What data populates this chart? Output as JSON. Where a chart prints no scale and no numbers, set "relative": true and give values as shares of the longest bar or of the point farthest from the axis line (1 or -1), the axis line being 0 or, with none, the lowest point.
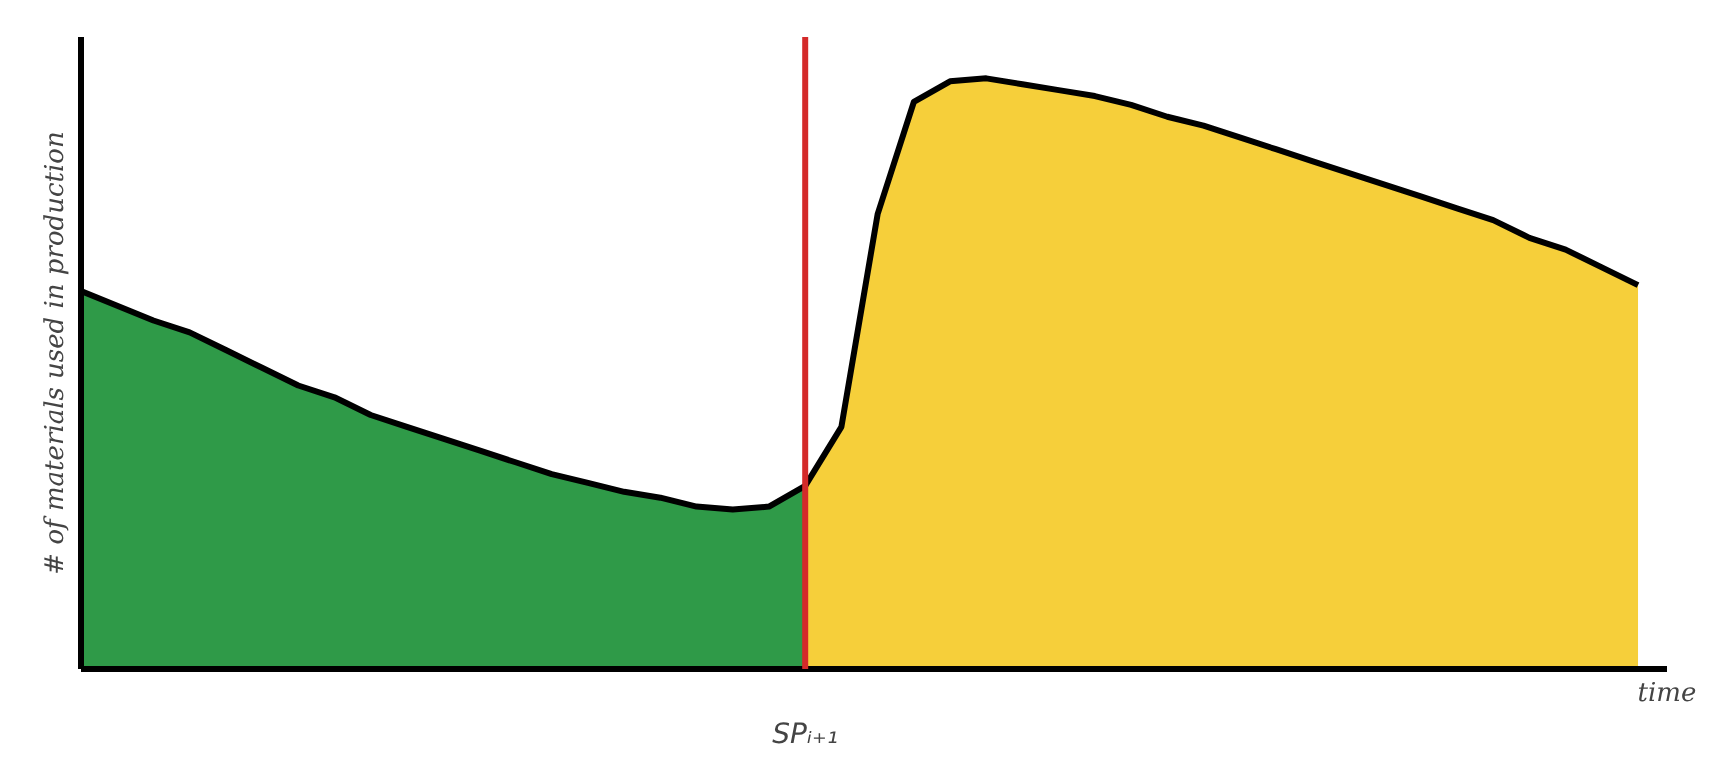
{
  "chart_data": {
    "type": "area",
    "relative": true,
    "xlabel": "time",
    "ylabel": "# of materials used in production",
    "categories": [
      null,
      null,
      null,
      null,
      null,
      null,
      null,
      null,
      null,
      null,
      null,
      null,
      null,
      null,
      null,
      null,
      null,
      null,
      null,
      null,
      null,
      null,
      null,
      null,
      null,
      null,
      null,
      null,
      null,
      null,
      null,
      null,
      null,
      null,
      null,
      null,
      null,
      null,
      null,
      null,
      null,
      null,
      null,
      null
    ],
    "series": [
      {
        "color": "#2f9a48",
        "values": [
          0.64,
          0.615,
          0.59,
          0.57,
          0.54,
          0.51,
          0.48,
          0.46,
          0.43,
          0.41,
          0.39,
          0.37,
          0.35,
          0.33,
          0.315,
          0.3,
          0.29,
          0.275,
          0.27,
          0.275,
          0.31,
          null,
          null,
          null,
          null,
          null,
          null,
          null,
          null,
          null,
          null,
          null,
          null,
          null,
          null,
          null,
          null,
          null,
          null,
          null,
          null,
          null,
          null,
          null
        ]
      },
      {
        "color": "#f6cf3a",
        "values": [
          null,
          null,
          null,
          null,
          null,
          null,
          null,
          null,
          null,
          null,
          null,
          null,
          null,
          null,
          null,
          null,
          null,
          null,
          null,
          null,
          0.31,
          0.41,
          0.77,
          0.96,
          0.995,
          1,
          0.99,
          0.98,
          0.97,
          0.955,
          0.935,
          0.92,
          0.9,
          0.88,
          0.86,
          0.84,
          0.82,
          0.8,
          0.78,
          0.76,
          0.73,
          0.71,
          0.68,
          0.65
        ]
      }
    ],
    "annotations": [
      "SPᵢ₊₁"
    ]
  }
}
